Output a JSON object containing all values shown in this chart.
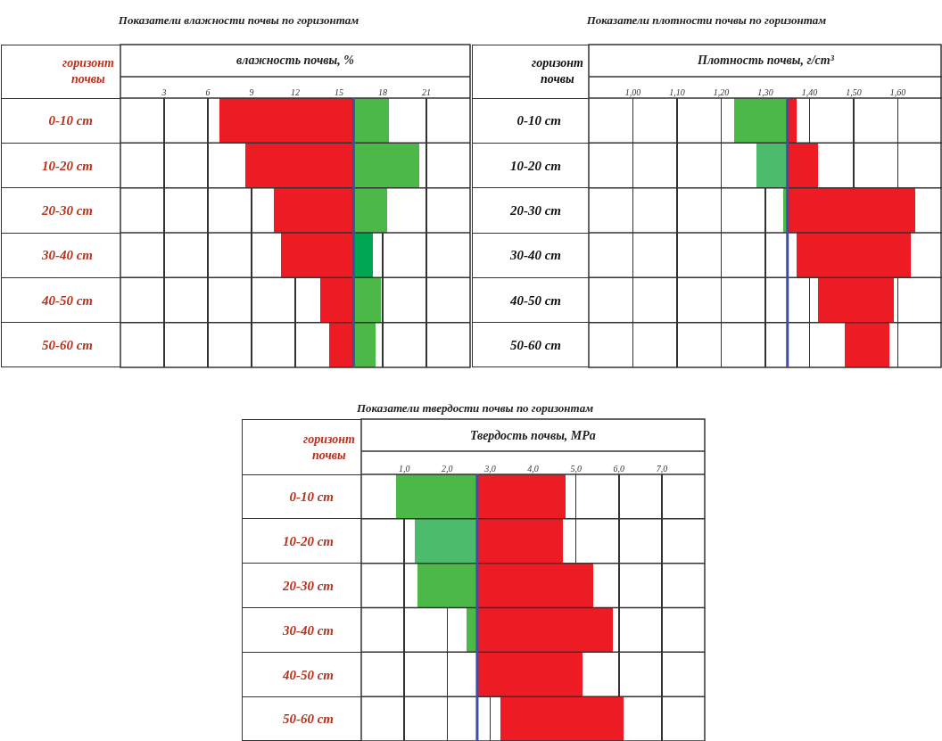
{
  "chart_data": [
    {
      "type": "bar",
      "orientation": "horizontal",
      "title": "Показатели влажности почвы по горизонтам",
      "xlabel": "влажность почвы, %",
      "ylabel": "горизонт почвы",
      "categories": [
        "0-10 cm",
        "10-20 cm",
        "20-30 cm",
        "30-40 cm",
        "40-50 cm",
        "50-60 cm"
      ],
      "series": [
        {
          "color": "#ed1c24",
          "base": [
            6.8,
            8.6,
            10.5,
            11.0,
            13.7,
            14.3
          ],
          "values": [
            9.2,
            7.4,
            5.5,
            5.0,
            2.3,
            1.7
          ]
        },
        {
          "colors": [
            "#4cb848",
            "#4cb848",
            "#4cb848",
            "#00a651",
            "#4cb848",
            "#4cb848"
          ],
          "base": [
            16,
            16,
            16,
            16,
            16,
            16
          ],
          "values": [
            2.4,
            4.5,
            2.3,
            1.3,
            1.9,
            1.5
          ]
        }
      ],
      "xlim": [
        0,
        24
      ],
      "xticks": [
        3,
        6,
        9,
        12,
        15,
        18,
        21
      ],
      "grid": "x",
      "ref_lines": [
        {
          "axis": "x",
          "value": 16,
          "color": "#3c4fa5"
        }
      ]
    },
    {
      "type": "bar",
      "orientation": "horizontal",
      "title": "Показатели плотности почвы по горизонтам",
      "xlabel": "Плотность почвы, г/cm³",
      "ylabel": "горизонт почвы",
      "categories": [
        "0-10 cm",
        "10-20 cm",
        "20-30 cm",
        "30-40 cm",
        "40-50 cm",
        "50-60 cm"
      ],
      "series": [
        {
          "colors": [
            "#4cb848",
            "#4dbb6c",
            "#4cb848",
            "#4cb848",
            "#4cb848",
            "#4cb848"
          ],
          "base": [
            1.23,
            1.28,
            1.34,
            null,
            null,
            null
          ],
          "values": [
            0.12,
            0.07,
            0.01,
            null,
            null,
            null
          ]
        },
        {
          "color": "#ed1c24",
          "base": [
            1.35,
            1.35,
            1.35,
            1.37,
            1.42,
            1.48
          ],
          "values": [
            0.02,
            0.07,
            0.29,
            0.26,
            0.17,
            0.1
          ]
        }
      ],
      "xlim": [
        0.9,
        1.7
      ],
      "xticks": [
        {
          "value": 1.0,
          "label": "1,00"
        },
        {
          "value": 1.1,
          "label": "1,10"
        },
        {
          "value": 1.2,
          "label": "1,20"
        },
        {
          "value": 1.3,
          "label": "1,30"
        },
        {
          "value": 1.4,
          "label": "1,40"
        },
        {
          "value": 1.5,
          "label": "1,50"
        },
        {
          "value": 1.6,
          "label": "1,60"
        }
      ],
      "grid": "x",
      "ref_lines": [
        {
          "axis": "x",
          "value": 1.35,
          "color": "#3c4fa5"
        }
      ]
    },
    {
      "type": "bar",
      "orientation": "horizontal",
      "title": "Показатели твердости почвы по горизонтам",
      "xlabel": "Твердость почвы, MPa",
      "ylabel": "горизонт почвы",
      "categories": [
        "0-10 cm",
        "10-20 cm",
        "20-30 cm",
        "30-40 cm",
        "40-50 cm",
        "50-60 cm"
      ],
      "series": [
        {
          "colors": [
            "#4cb848",
            "#4dbb6c",
            "#4cb848",
            "#4cb848",
            "#4cb848",
            "#4cb848"
          ],
          "base": [
            0.8,
            1.25,
            1.3,
            2.45,
            null,
            null
          ],
          "values": [
            1.9,
            1.45,
            1.4,
            0.25,
            null,
            null
          ]
        },
        {
          "color": "#ed1c24",
          "base": [
            2.7,
            2.7,
            2.7,
            2.7,
            2.7,
            3.25
          ],
          "values": [
            2.05,
            2.0,
            2.7,
            3.15,
            2.45,
            2.85
          ]
        }
      ],
      "xlim": [
        0,
        8
      ],
      "xticks": [
        {
          "value": 1,
          "label": "1,0"
        },
        {
          "value": 2,
          "label": "2,0"
        },
        {
          "value": 3,
          "label": "3,0"
        },
        {
          "value": 4,
          "label": "4,0"
        },
        {
          "value": 5,
          "label": "5,0"
        },
        {
          "value": 6,
          "label": "6,0"
        },
        {
          "value": 7,
          "label": "7,0"
        }
      ],
      "grid": "x",
      "ref_lines": [
        {
          "axis": "x",
          "value": 2.7,
          "color": "#3c4fa5"
        }
      ]
    }
  ]
}
